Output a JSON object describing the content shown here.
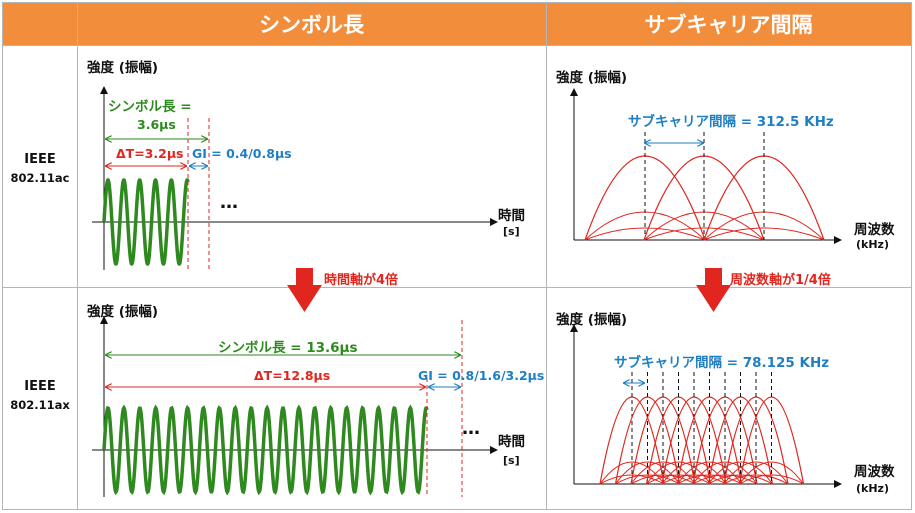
{
  "header": {
    "col_symbol": "シンボル長",
    "col_subcarrier": "サブキャリア間隔"
  },
  "rows": {
    "ac_label_line1": "IEEE",
    "ac_label_line2": "802.11ac",
    "ax_label_line1": "IEEE",
    "ax_label_line2": "802.11ax"
  },
  "axis": {
    "y_label": "強度 (振幅)",
    "time_label": "時間",
    "time_unit": "[s]",
    "freq_label": "周波数",
    "freq_unit": "(kHz)",
    "ellipsis": "…"
  },
  "ac": {
    "symbol_len_line1": "シンボル長 =",
    "symbol_len_line2": "3.6μs",
    "delta_t": "ΔT=3.2μs",
    "gi": "GI = 0.4/0.8μs",
    "subcarrier": "サブキャリア間隔 = 312.5 KHz"
  },
  "ax": {
    "symbol_len": "シンボル長 = 13.6μs",
    "delta_t": "ΔT=12.8μs",
    "gi": "GI = 0.8/1.6/3.2μs",
    "subcarrier": "サブキャリア間隔 = 78.125 KHz"
  },
  "arrows": {
    "time_note": "時間軸が4倍",
    "freq_note": "周波数軸が1/4倍"
  },
  "colors": {
    "header_bg": "#f28d3b",
    "wave": "#2e8a1e",
    "red": "#e0261e",
    "blue": "#1f7fc2"
  }
}
